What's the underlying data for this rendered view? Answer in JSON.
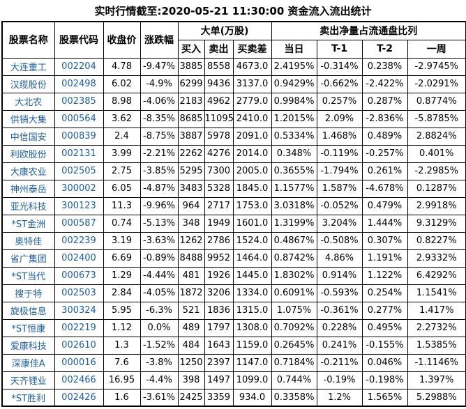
{
  "title": "实时行情截至:2020-05-21 11:30:00 资金流入流出统计",
  "colors": {
    "accent_blue": "#1d5d9e",
    "text": "#000000",
    "border": "#000000",
    "background": "#ffffff"
  },
  "table": {
    "headers": {
      "name": "股票名称",
      "code": "股票代码",
      "close": "收盘价",
      "change": "涨跌幅",
      "big_orders_group": "大单(万股)",
      "buy": "买入",
      "sell": "卖出",
      "diff": "买卖差",
      "net_sell_group": "卖出净量占流通盘比列",
      "day": "当日",
      "t1": "T-1",
      "t2": "T-2",
      "week": "一周"
    },
    "rows": [
      [
        "大连重工",
        "002204",
        "4.78",
        "-9.47%",
        "3885",
        "8558",
        "4673.0",
        "2.4195%",
        "-0.314%",
        "0.238%",
        "-2.9745%"
      ],
      [
        "汉缆股份",
        "002498",
        "6.02",
        "-4.9%",
        "6299",
        "9436",
        "3137.0",
        "0.9429%",
        "-0.662%",
        "-2.422%",
        "-2.0291%"
      ],
      [
        "大北农",
        "002385",
        "8.98",
        "-4.06%",
        "2183",
        "4962",
        "2779.0",
        "0.9984%",
        "0.257%",
        "0.287%",
        "0.8774%"
      ],
      [
        "供销大集",
        "000564",
        "3.62",
        "-8.35%",
        "8685",
        "11095",
        "2410.0",
        "1.2015%",
        "2.09%",
        "-2.836%",
        "-5.8785%"
      ],
      [
        "中信国安",
        "000839",
        "2.4",
        "-8.75%",
        "3887",
        "5978",
        "2091.0",
        "0.5334%",
        "1.468%",
        "0.489%",
        "2.8824%"
      ],
      [
        "利欧股份",
        "002131",
        "3.99",
        "-2.21%",
        "2262",
        "4276",
        "2014.0",
        "0.348%",
        "-0.119%",
        "-0.257%",
        "0.401%"
      ],
      [
        "大康农业",
        "002505",
        "2.75",
        "-3.85%",
        "5295",
        "7300",
        "2005.0",
        "0.3655%",
        "-1.794%",
        "0.261%",
        "-2.2985%"
      ],
      [
        "神州泰岳",
        "300002",
        "6.05",
        "-4.87%",
        "3483",
        "5328",
        "1845.0",
        "1.1577%",
        "1.587%",
        "-4.678%",
        "0.1287%"
      ],
      [
        "亚光科技",
        "300123",
        "11.3",
        "-9.96%",
        "964",
        "2717",
        "1753.0",
        "3.0318%",
        "-0.052%",
        "0.479%",
        "2.9918%"
      ],
      [
        "*ST金洲",
        "000587",
        "0.74",
        "-5.13%",
        "348",
        "1949",
        "1601.0",
        "1.3199%",
        "3.204%",
        "1.444%",
        "9.3129%"
      ],
      [
        "奥特佳",
        "002239",
        "3.19",
        "-3.63%",
        "1262",
        "2786",
        "1524.0",
        "0.4867%",
        "-0.508%",
        "0.307%",
        "0.8227%"
      ],
      [
        "省广集团",
        "002400",
        "6.69",
        "-0.89%",
        "8488",
        "9952",
        "1464.0",
        "0.8742%",
        "4.86%",
        "1.191%",
        "2.9332%"
      ],
      [
        "*ST当代",
        "000673",
        "1.29",
        "-4.44%",
        "481",
        "1926",
        "1445.0",
        "1.8302%",
        "0.914%",
        "1.122%",
        "6.4292%"
      ],
      [
        "搜于特",
        "002503",
        "2.84",
        "-4.05%",
        "1872",
        "3206",
        "1334.0",
        "0.6091%",
        "-0.593%",
        "0.254%",
        "1.1541%"
      ],
      [
        "旋极信息",
        "300324",
        "5.95",
        "-6.3%",
        "521",
        "1836",
        "1315.0",
        "1.075%",
        "-0.361%",
        "0.277%",
        "1.417%"
      ],
      [
        "*ST恒康",
        "002219",
        "1.12",
        "0.0%",
        "489",
        "1797",
        "1308.0",
        "0.7092%",
        "0.228%",
        "0.495%",
        "2.2732%"
      ],
      [
        "爱康科技",
        "002610",
        "1.3",
        "-1.52%",
        "484",
        "1643",
        "1159.0",
        "0.2645%",
        "0.241%",
        "-0.155%",
        "1.5385%"
      ],
      [
        "深康佳A",
        "000016",
        "7.6",
        "-3.8%",
        "1250",
        "2397",
        "1147.0",
        "0.7184%",
        "-0.211%",
        "0.046%",
        "-1.1146%"
      ],
      [
        "天齐锂业",
        "002466",
        "16.95",
        "-4.4%",
        "398",
        "1497",
        "1099.0",
        "0.744%",
        "-0.19%",
        "-0.198%",
        "1.397%"
      ],
      [
        "*ST胜利",
        "002426",
        "1.6",
        "-3.61%",
        "2425",
        "3359",
        "934.0",
        "0.3358%",
        "1.2%",
        "1.565%",
        "5.2988%"
      ]
    ]
  }
}
